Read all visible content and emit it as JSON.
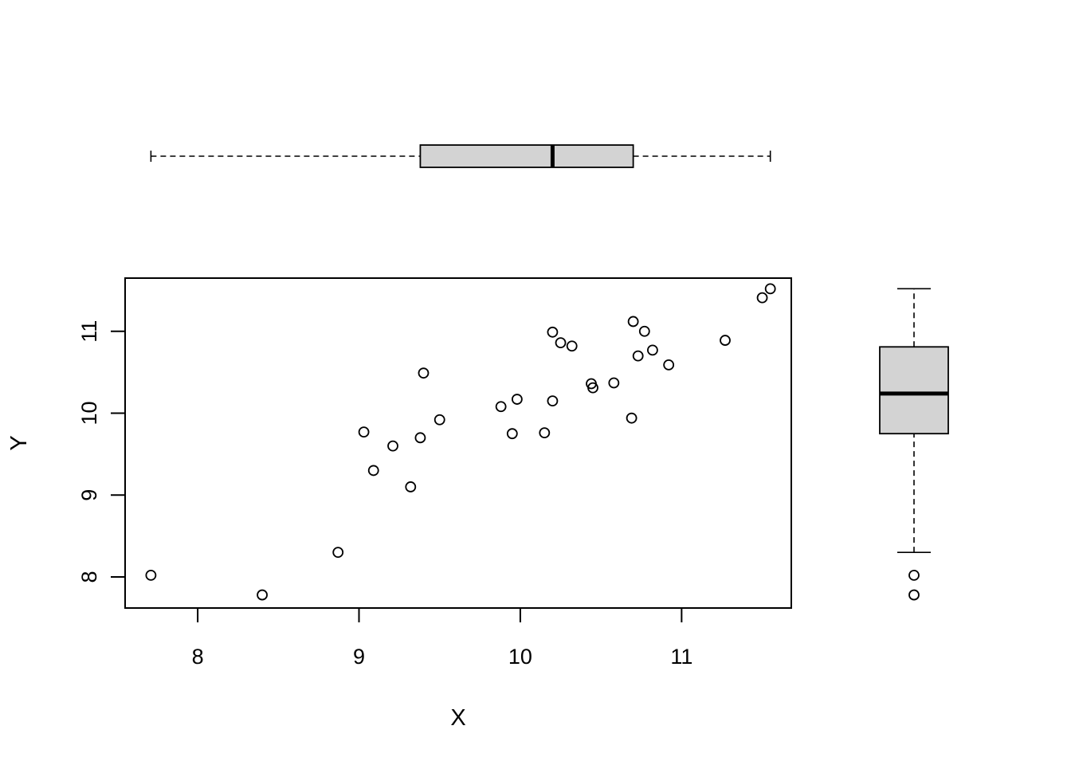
{
  "chart_data": [
    {
      "type": "scatter",
      "title": "",
      "xlabel": "X",
      "ylabel": "Y",
      "xlim": [
        7.55,
        11.68
      ],
      "ylim": [
        7.62,
        11.65
      ],
      "x_ticks": [
        8,
        9,
        10,
        11
      ],
      "x_tick_labels": [
        "8",
        "9",
        "10",
        "11"
      ],
      "y_ticks": [
        8,
        9,
        10,
        11
      ],
      "y_tick_labels": [
        "8",
        "9",
        "10",
        "11"
      ],
      "grid": false,
      "legend": "none",
      "point_style": "open-circle",
      "points": [
        {
          "x": 7.71,
          "y": 8.02
        },
        {
          "x": 8.4,
          "y": 7.78
        },
        {
          "x": 8.87,
          "y": 8.3
        },
        {
          "x": 9.03,
          "y": 9.77
        },
        {
          "x": 9.09,
          "y": 9.3
        },
        {
          "x": 9.21,
          "y": 9.6
        },
        {
          "x": 9.32,
          "y": 9.1
        },
        {
          "x": 9.38,
          "y": 9.7
        },
        {
          "x": 9.4,
          "y": 10.49
        },
        {
          "x": 9.5,
          "y": 9.92
        },
        {
          "x": 9.88,
          "y": 10.08
        },
        {
          "x": 9.95,
          "y": 9.75
        },
        {
          "x": 9.98,
          "y": 10.17
        },
        {
          "x": 10.15,
          "y": 9.76
        },
        {
          "x": 10.2,
          "y": 10.15
        },
        {
          "x": 10.2,
          "y": 10.99
        },
        {
          "x": 10.25,
          "y": 10.86
        },
        {
          "x": 10.32,
          "y": 10.82
        },
        {
          "x": 10.44,
          "y": 10.36
        },
        {
          "x": 10.45,
          "y": 10.31
        },
        {
          "x": 10.58,
          "y": 10.37
        },
        {
          "x": 10.69,
          "y": 9.94
        },
        {
          "x": 10.7,
          "y": 11.12
        },
        {
          "x": 10.73,
          "y": 10.7
        },
        {
          "x": 10.77,
          "y": 11.0
        },
        {
          "x": 10.82,
          "y": 10.77
        },
        {
          "x": 10.92,
          "y": 10.59
        },
        {
          "x": 11.27,
          "y": 10.89
        },
        {
          "x": 11.5,
          "y": 11.41
        },
        {
          "x": 11.55,
          "y": 11.52
        }
      ]
    },
    {
      "type": "boxplot",
      "orientation": "horizontal",
      "variable": "X",
      "whisker_low": 7.71,
      "q1": 9.38,
      "median": 10.2,
      "q3": 10.7,
      "whisker_high": 11.55,
      "outliers": []
    },
    {
      "type": "boxplot",
      "orientation": "vertical",
      "variable": "Y",
      "whisker_low": 8.3,
      "q1": 9.75,
      "median": 10.24,
      "q3": 10.81,
      "whisker_high": 11.52,
      "outliers": [
        8.02,
        7.78
      ]
    }
  ],
  "colors": {
    "box_fill": "#d3d3d3",
    "stroke": "#000000",
    "background": "#ffffff"
  }
}
